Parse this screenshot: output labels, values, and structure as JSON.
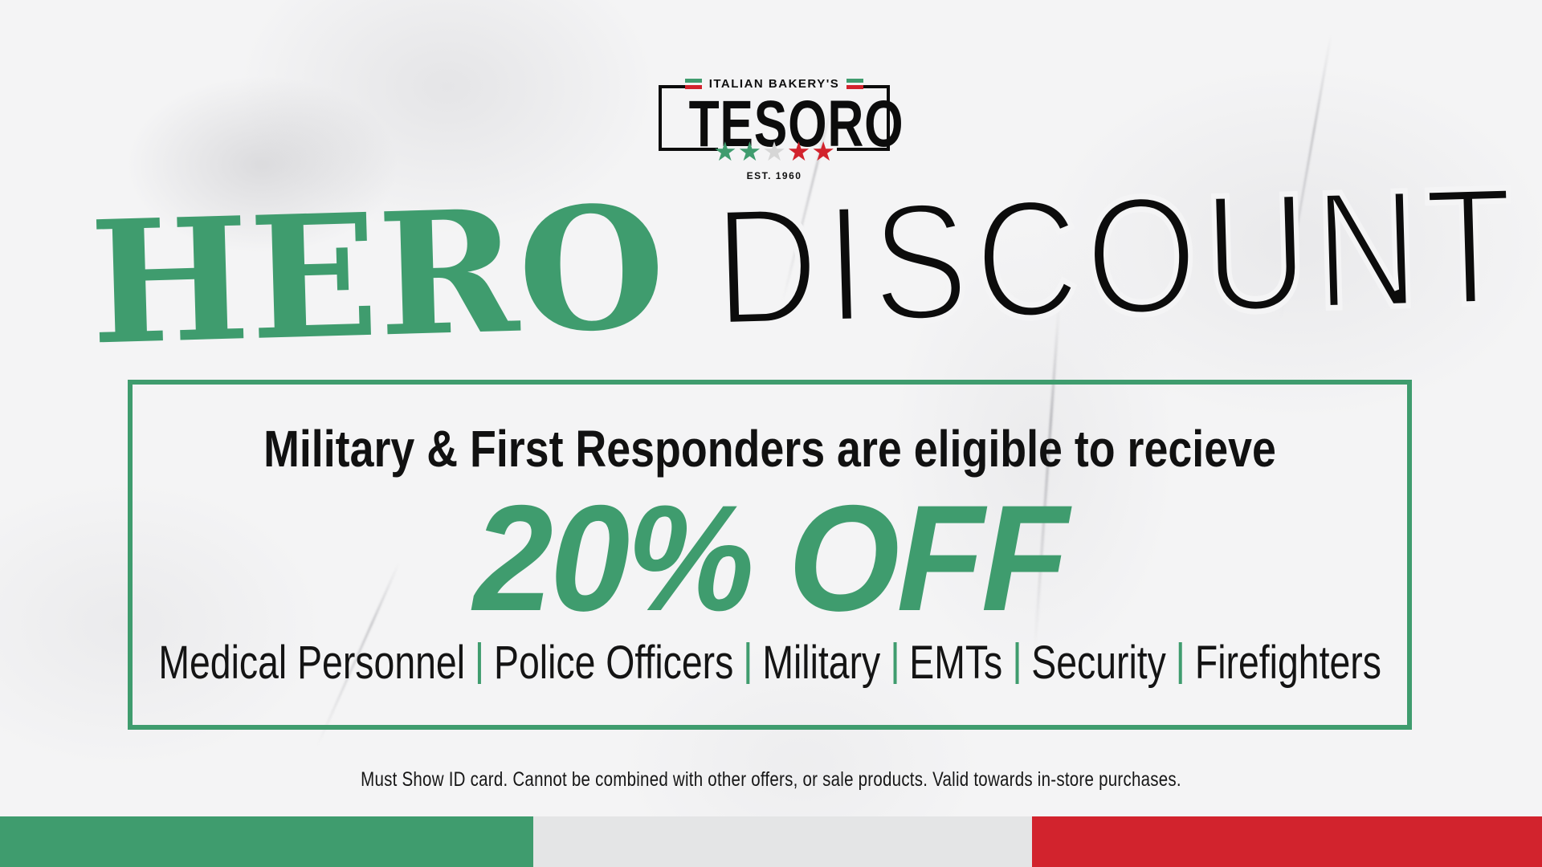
{
  "logo": {
    "brand_prefix": "ITALIAN BAKERY'S",
    "brand_name": "TESORO",
    "established": "EST. 1960",
    "stars": [
      "#3f9c6e",
      "#3f9c6e",
      "#d6d6d6",
      "#d2232d",
      "#d2232d"
    ]
  },
  "headline": {
    "word1": "HERO",
    "word2": "DISCOUNT"
  },
  "offer": {
    "eligibility_line": "Military & First Responders are eligible to recieve",
    "discount": "20% OFF",
    "categories": [
      "Medical Personnel",
      "Police Officers",
      "Military",
      "EMTs",
      "Security",
      "Firefighters"
    ]
  },
  "disclaimer": "Must Show ID card. Cannot be combined with other offers, or sale products. Valid towards in-store purchases.",
  "colors": {
    "green": "#3f9c6e",
    "red": "#d2232d",
    "stripe_gray": "#e4e5e6",
    "star_gray": "#d6d6d6",
    "ink": "#0e0e0e",
    "bg": "#f4f4f5"
  }
}
